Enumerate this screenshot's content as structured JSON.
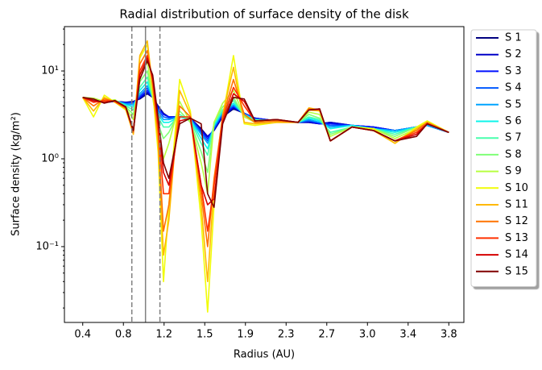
{
  "chart_data": {
    "type": "line",
    "title": "Radial distribution of surface density of the disk",
    "xlabel": "Radius (AU)",
    "ylabel": "Surface density (kg/m²)",
    "yscale": "log",
    "legend": "outside upper right",
    "x": [
      0.4,
      0.5,
      0.6,
      0.7,
      0.8,
      0.87,
      0.93,
      1.0,
      1.05,
      1.1,
      1.15,
      1.2,
      1.3,
      1.4,
      1.5,
      1.56,
      1.62,
      1.7,
      1.8,
      1.9,
      2.0,
      2.2,
      2.4,
      2.5,
      2.6,
      2.7,
      2.9,
      3.1,
      3.3,
      3.5,
      3.6,
      3.8
    ],
    "xlim": [
      0.23,
      3.94
    ],
    "xticks": [
      0.4,
      {
        "value": 0.7778,
        "label": "0.8"
      },
      {
        "value": 1.1556,
        "label": "1.2"
      },
      {
        "value": 1.5333,
        "label": "1.5"
      },
      {
        "value": 1.9111,
        "label": "1.9"
      },
      {
        "value": 2.2889,
        "label": "2.3"
      },
      {
        "value": 2.6667,
        "label": "2.7"
      },
      {
        "value": 3.0444,
        "label": "3.0"
      },
      {
        "value": 3.4222,
        "label": "3.4"
      },
      3.8
    ],
    "ylim": [
      0.0137,
      32
    ],
    "yticks": [
      {
        "value": 0.1,
        "label": "10⁻¹"
      },
      {
        "value": 1,
        "label": "10⁰"
      },
      {
        "value": 10,
        "label": "10¹"
      }
    ],
    "vlines": [
      {
        "x": 0.856,
        "style": "dashed"
      },
      {
        "x": 0.983,
        "style": "solid"
      },
      {
        "x": 1.117,
        "style": "dashed"
      }
    ],
    "vline_color": "#808080",
    "series": [
      {
        "name": "S 1",
        "color": "#000080",
        "values": [
          5,
          4.6,
          4.4,
          4.5,
          4.4,
          4.5,
          4.8,
          5.5,
          5,
          4,
          3.3,
          3,
          3,
          2.9,
          2.2,
          1.8,
          2.1,
          3,
          3.7,
          3.3,
          2.9,
          2.7,
          2.6,
          2.6,
          2.5,
          2.6,
          2.4,
          2.3,
          2.1,
          2.3,
          2.4,
          2.0
        ]
      },
      {
        "name": "S 2",
        "color": "#0000c8",
        "values": [
          5,
          4.6,
          4.4,
          4.5,
          4.4,
          4.4,
          4.9,
          5.7,
          5,
          3.9,
          3.2,
          3,
          3,
          2.9,
          2.1,
          1.8,
          2.1,
          3.1,
          3.8,
          3.3,
          2.9,
          2.7,
          2.6,
          2.6,
          2.5,
          2.6,
          2.4,
          2.3,
          2.1,
          2.3,
          2.4,
          2.0
        ]
      },
      {
        "name": "S 3",
        "color": "#0010ff",
        "values": [
          5,
          4.6,
          4.5,
          4.5,
          4.3,
          4.4,
          5,
          6,
          5,
          3.8,
          3.2,
          3,
          3,
          2.9,
          2.1,
          1.7,
          2.2,
          3.2,
          3.9,
          3.3,
          2.9,
          2.7,
          2.6,
          2.7,
          2.5,
          2.5,
          2.4,
          2.3,
          2.1,
          2.3,
          2.4,
          2.0
        ]
      },
      {
        "name": "S 4",
        "color": "#0058ff",
        "values": [
          5,
          4.7,
          4.5,
          4.5,
          4.3,
          4.3,
          5.2,
          6.4,
          5,
          3.6,
          3,
          2.9,
          3,
          2.9,
          2.0,
          1.6,
          2.2,
          3.3,
          4,
          3.3,
          2.8,
          2.7,
          2.6,
          2.7,
          2.6,
          2.4,
          2.4,
          2.2,
          2.1,
          2.3,
          2.4,
          2.0
        ]
      },
      {
        "name": "S 5",
        "color": "#00a4ff",
        "values": [
          5,
          4.7,
          4.5,
          4.6,
          4.2,
          4.1,
          5.5,
          6.8,
          5,
          3.4,
          2.8,
          2.8,
          3,
          2.8,
          1.9,
          1.5,
          2.3,
          3.4,
          4.1,
          3.2,
          2.8,
          2.7,
          2.6,
          2.8,
          2.6,
          2.3,
          2.4,
          2.2,
          2.1,
          2.3,
          2.4,
          2.0
        ]
      },
      {
        "name": "S 6",
        "color": "#0df4ea",
        "values": [
          5,
          4.7,
          4.5,
          4.6,
          4.1,
          3.9,
          6,
          7.5,
          5,
          3.2,
          2.6,
          2.6,
          3,
          2.8,
          1.7,
          1.3,
          2.4,
          3.5,
          4.3,
          3.2,
          2.8,
          2.7,
          2.6,
          2.9,
          2.7,
          2.2,
          2.4,
          2.2,
          2.0,
          2.3,
          2.5,
          2.0
        ]
      },
      {
        "name": "S 7",
        "color": "#49ffad",
        "values": [
          5,
          4.8,
          4.4,
          4.6,
          4.0,
          3.6,
          6.5,
          8.5,
          5,
          3,
          2.3,
          2.3,
          3.2,
          2.7,
          1.5,
          1.1,
          2.5,
          3.6,
          4.6,
          3.1,
          2.8,
          2.7,
          2.6,
          3,
          2.8,
          2.0,
          2.3,
          2.2,
          1.9,
          2.3,
          2.5,
          2.0
        ]
      },
      {
        "name": "S 8",
        "color": "#80ff77",
        "values": [
          5,
          4.8,
          4.4,
          4.7,
          3.9,
          3.2,
          7.5,
          10,
          5,
          2.5,
          1.7,
          2,
          3.5,
          2.6,
          1.2,
          0.7,
          2.6,
          3.9,
          5,
          3,
          2.7,
          2.7,
          2.6,
          3.2,
          2.9,
          1.9,
          2.3,
          2.2,
          1.8,
          2.3,
          2.5,
          2.0
        ]
      },
      {
        "name": "S 9",
        "color": "#b7ff40",
        "values": [
          5,
          4.9,
          4.5,
          4.7,
          3.8,
          2.8,
          9,
          13,
          5,
          2,
          1.0,
          1.5,
          4.5,
          2.6,
          0.9,
          0.4,
          2.6,
          4.3,
          6,
          3,
          2.6,
          2.7,
          2.6,
          3.4,
          3.2,
          1.8,
          2.3,
          2.2,
          1.7,
          2.2,
          2.6,
          2.0
        ]
      },
      {
        "name": "S 10",
        "color": "#f1fc06",
        "values": [
          5,
          3,
          5.3,
          4.4,
          3.6,
          2.0,
          14,
          20,
          6,
          1.2,
          0.04,
          0.3,
          8,
          3.5,
          0.2,
          0.018,
          0.3,
          3,
          15,
          2.5,
          2.4,
          2.6,
          2.6,
          3.6,
          3.5,
          1.6,
          2.3,
          2.2,
          1.5,
          2.3,
          2.7,
          2.0
        ]
      },
      {
        "name": "S 11",
        "color": "#ffb900",
        "values": [
          5,
          3.5,
          5,
          4.4,
          3.7,
          1.9,
          15,
          22,
          6.5,
          1.5,
          0.08,
          0.2,
          6,
          3.2,
          0.3,
          0.04,
          0.5,
          3.2,
          11,
          2.6,
          2.5,
          2.6,
          2.6,
          3.8,
          3.6,
          1.6,
          2.3,
          2.1,
          1.5,
          2.2,
          2.6,
          2.0
        ]
      },
      {
        "name": "S 12",
        "color": "#ff7300",
        "values": [
          5,
          4,
          4.8,
          4.5,
          3.8,
          2.0,
          12,
          17,
          7,
          2,
          0.15,
          0.3,
          4,
          3,
          0.4,
          0.1,
          0.6,
          3,
          8,
          3.2,
          2.6,
          2.7,
          2.6,
          3.7,
          3.6,
          1.6,
          2.3,
          2.1,
          1.6,
          2.1,
          2.6,
          2.0
        ]
      },
      {
        "name": "S 13",
        "color": "#ff3000",
        "values": [
          5,
          4.4,
          4.6,
          4.5,
          3.8,
          2.1,
          10,
          15,
          8,
          2.4,
          0.4,
          0.4,
          3,
          3,
          0.5,
          0.15,
          0.5,
          2.8,
          6.5,
          4,
          2.7,
          2.8,
          2.6,
          3.6,
          3.6,
          1.6,
          2.3,
          2.1,
          1.6,
          2.0,
          2.5,
          2.0
        ]
      },
      {
        "name": "S 14",
        "color": "#d60000",
        "values": [
          5,
          4.6,
          4.4,
          4.6,
          3.9,
          2.1,
          9,
          14,
          8.5,
          2.7,
          0.7,
          0.5,
          2.7,
          2.9,
          0.5,
          0.3,
          0.35,
          2.6,
          5.5,
          4.5,
          2.7,
          2.8,
          2.6,
          3.6,
          3.7,
          1.6,
          2.3,
          2.1,
          1.6,
          1.9,
          2.5,
          2.0
        ]
      },
      {
        "name": "S 15",
        "color": "#800000",
        "values": [
          5,
          4.8,
          4.3,
          4.6,
          3.9,
          2.1,
          8,
          13,
          9,
          3,
          0.9,
          0.6,
          2.5,
          2.9,
          2.5,
          0.4,
          0.28,
          2.5,
          5,
          4.8,
          2.7,
          2.8,
          2.6,
          3.6,
          3.7,
          1.6,
          2.3,
          2.1,
          1.6,
          1.8,
          2.5,
          2.0
        ]
      }
    ]
  }
}
